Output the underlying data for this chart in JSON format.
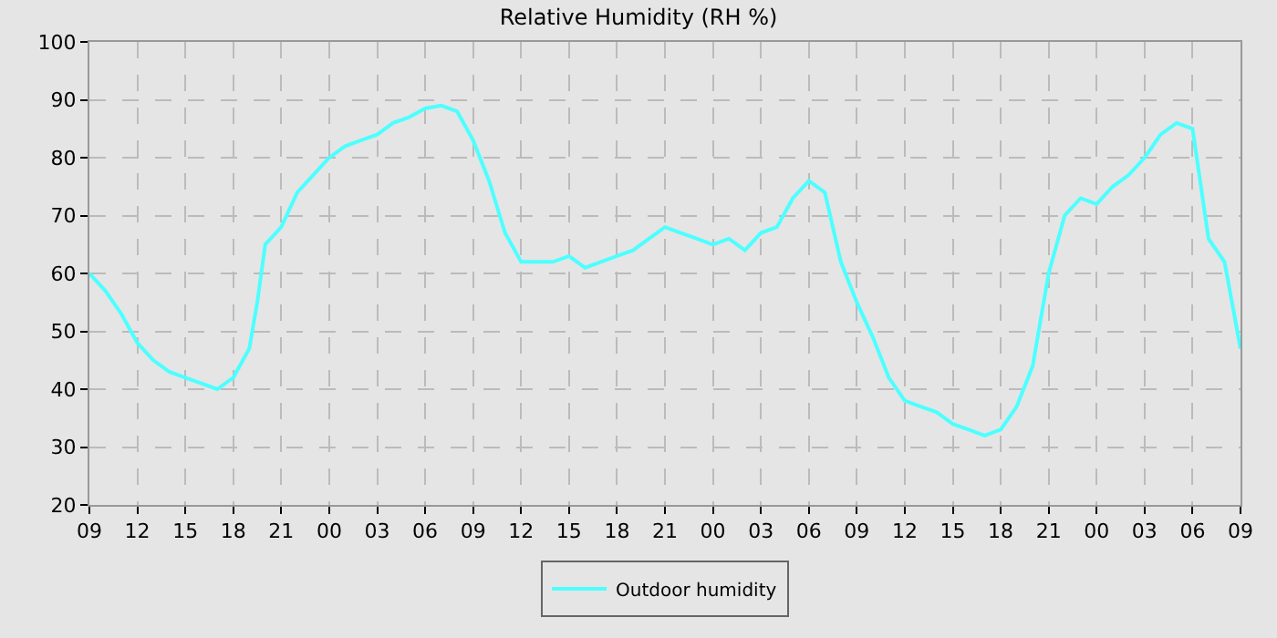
{
  "chart_data": {
    "type": "line",
    "title": "Relative Humidity (RH %)",
    "x": [
      9,
      10,
      11,
      12,
      13,
      14,
      15,
      16,
      17,
      18,
      19,
      19.5,
      20,
      21,
      22,
      23,
      24,
      25,
      26,
      27,
      28,
      29,
      30,
      31,
      32,
      33,
      34,
      35,
      36,
      37,
      38,
      39,
      40,
      41,
      42,
      43,
      44,
      45,
      46,
      47,
      48,
      49,
      50,
      51,
      52,
      53,
      54,
      55,
      56,
      57,
      58,
      59,
      60,
      61,
      62,
      63,
      64,
      65,
      66,
      67,
      68,
      69,
      70,
      71,
      72,
      73,
      74,
      75,
      76,
      77,
      78,
      79,
      80,
      81
    ],
    "series": [
      {
        "name": "Outdoor humidity",
        "color": "#4dffff",
        "values": [
          60,
          57,
          53,
          48,
          45,
          43,
          42,
          41,
          40,
          42,
          47,
          55,
          65,
          68,
          74,
          77,
          80,
          82,
          83,
          84,
          86,
          87,
          88.5,
          89,
          88,
          83,
          76,
          67,
          62,
          62,
          62,
          63,
          61,
          62,
          63,
          64,
          66,
          68,
          67,
          66,
          65,
          66,
          64,
          67,
          68,
          73,
          76,
          74,
          62,
          55,
          49,
          42,
          38,
          37,
          36,
          34,
          33,
          32,
          33,
          37,
          44,
          60,
          70,
          73,
          72,
          75,
          77,
          80,
          84,
          86,
          85,
          66,
          62,
          47
        ]
      }
    ],
    "xlim": [
      9,
      81
    ],
    "xticks": [
      {
        "value": 9,
        "label": "09"
      },
      12,
      15,
      18,
      21,
      {
        "value": 24,
        "label": "00"
      },
      {
        "value": 27,
        "label": "03"
      },
      {
        "value": 30,
        "label": "06"
      },
      {
        "value": 33,
        "label": "09"
      },
      {
        "value": 36,
        "label": "12"
      },
      {
        "value": 39,
        "label": "15"
      },
      {
        "value": 42,
        "label": "18"
      },
      {
        "value": 45,
        "label": "21"
      },
      {
        "value": 48,
        "label": "00"
      },
      {
        "value": 51,
        "label": "03"
      },
      {
        "value": 54,
        "label": "06"
      },
      {
        "value": 57,
        "label": "09"
      },
      {
        "value": 60,
        "label": "12"
      },
      {
        "value": 63,
        "label": "15"
      },
      {
        "value": 66,
        "label": "18"
      },
      {
        "value": 69,
        "label": "21"
      },
      {
        "value": 72,
        "label": "00"
      },
      {
        "value": 75,
        "label": "03"
      },
      {
        "value": 78,
        "label": "06"
      },
      {
        "value": 81,
        "label": "09"
      }
    ],
    "ylim": [
      20,
      100
    ],
    "yticks": [
      20,
      30,
      40,
      50,
      60,
      70,
      80,
      90,
      100
    ],
    "grid": true,
    "legend": "bottom",
    "marker": "none",
    "line_style": "solid"
  }
}
